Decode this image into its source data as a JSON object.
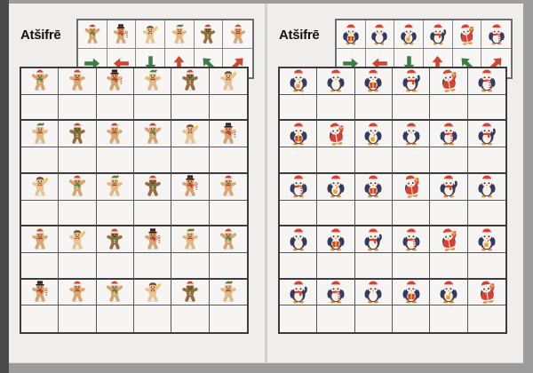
{
  "workbook": {
    "viewer": {
      "page_bg": "#efeeec",
      "frame_color": "#9c9c9c",
      "left_edge_color": "#4a4a4a",
      "divider_color": "#d3d0cc"
    },
    "arrow_colors": {
      "green": "#3f7d47",
      "red": "#cc4733"
    },
    "pages": [
      {
        "title": "Atšifrē",
        "charset": "gingerbread",
        "character_names": {
          "1": "gingerbread-cheer-green-scarf",
          "2": "gingerbread-top-hat-candy-cane",
          "3": "gingerbread-hair-star",
          "4": "gingerbread-elf-hat-red-bow",
          "5": "gingerbread-dark-santa-green-scarf",
          "6": "gingerbread-santa-red-bow"
        },
        "key": [
          {
            "char": 1,
            "arrow": "right",
            "color": "green"
          },
          {
            "char": 2,
            "arrow": "left",
            "color": "red"
          },
          {
            "char": 3,
            "arrow": "down",
            "color": "green"
          },
          {
            "char": 4,
            "arrow": "up",
            "color": "red"
          },
          {
            "char": 5,
            "arrow": "up-left",
            "color": "green"
          },
          {
            "char": 6,
            "arrow": "up-right",
            "color": "red"
          }
        ],
        "grid": {
          "columns": 6,
          "rows": 10,
          "character_rows": [
            [
              1,
              6,
              2,
              4,
              5,
              3
            ],
            [
              4,
              5,
              6,
              1,
              3,
              2
            ],
            [
              3,
              1,
              4,
              5,
              2,
              6
            ],
            [
              6,
              3,
              5,
              2,
              4,
              1
            ],
            [
              2,
              6,
              1,
              3,
              5,
              4
            ]
          ]
        }
      },
      {
        "title": "Atšifrē",
        "charset": "penguin",
        "character_names": {
          "1": "penguin-gift",
          "2": "penguin-santa-hat",
          "3": "penguin-orange-drink",
          "4": "penguin-red-scarf-wave",
          "5": "penguin-santa-suit-gift",
          "6": "penguin-candy-cane"
        },
        "key": [
          {
            "char": 1,
            "arrow": "right",
            "color": "green"
          },
          {
            "char": 2,
            "arrow": "left",
            "color": "red"
          },
          {
            "char": 3,
            "arrow": "down",
            "color": "green"
          },
          {
            "char": 4,
            "arrow": "up",
            "color": "red"
          },
          {
            "char": 5,
            "arrow": "up-left",
            "color": "green"
          },
          {
            "char": 6,
            "arrow": "up-right",
            "color": "red"
          }
        ],
        "grid": {
          "columns": 6,
          "rows": 10,
          "character_rows": [
            [
              3,
              2,
              1,
              4,
              5,
              6
            ],
            [
              1,
              5,
              3,
              2,
              6,
              4
            ],
            [
              6,
              3,
              1,
              5,
              4,
              2
            ],
            [
              2,
              1,
              4,
              6,
              5,
              3
            ],
            [
              4,
              6,
              2,
              1,
              3,
              5
            ]
          ]
        }
      }
    ]
  }
}
